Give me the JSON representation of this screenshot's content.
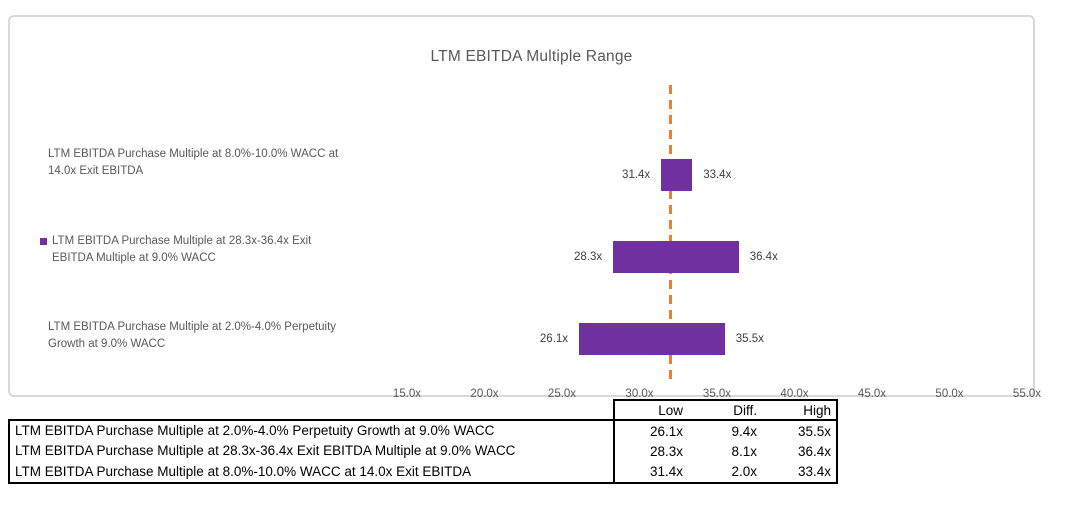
{
  "chart_data": {
    "type": "bar",
    "subtype": "horizontal-range-bar-football-field",
    "title": "LTM EBITDA Multiple Range",
    "bar_color": "#7030A0",
    "legend_marker_color": "#7030A0",
    "rows": [
      {
        "label": "LTM EBITDA Purchase Multiple at 8.0%-10.0% WACC at 14.0x Exit EBITDA",
        "low": 31.4,
        "high": 33.4,
        "diff": 2.0,
        "low_label": "31.4x",
        "high_label": "33.4x"
      },
      {
        "label": "LTM EBITDA Purchase Multiple at 28.3x-36.4x Exit EBITDA Multiple at 9.0% WACC",
        "low": 28.3,
        "high": 36.4,
        "diff": 8.1,
        "low_label": "28.3x",
        "high_label": "36.4x"
      },
      {
        "label": "LTM EBITDA Purchase Multiple at 2.0%-4.0% Perpetuity Growth at 9.0% WACC",
        "low": 26.1,
        "high": 35.5,
        "diff": 9.4,
        "low_label": "26.1x",
        "high_label": "35.5x"
      }
    ],
    "x_axis": {
      "min": 15,
      "max": 55,
      "tick_step": 5,
      "tick_labels": [
        "15.0x",
        "20.0x",
        "25.0x",
        "30.0x",
        "35.0x",
        "40.0x",
        "45.0x",
        "50.0x",
        "55.0x"
      ]
    },
    "reference_line": {
      "value": 32.0,
      "color": "#ED7D31",
      "style": "dashed"
    }
  },
  "table": {
    "header": {
      "low": "Low",
      "diff": "Diff.",
      "high": "High"
    },
    "rows": [
      {
        "label": "LTM EBITDA Purchase Multiple at 2.0%-4.0% Perpetuity Growth at 9.0% WACC",
        "low": "26.1x",
        "diff": "9.4x",
        "high": "35.5x"
      },
      {
        "label": "LTM EBITDA Purchase Multiple at 28.3x-36.4x Exit EBITDA Multiple at 9.0% WACC",
        "low": "28.3x",
        "diff": "8.1x",
        "high": "36.4x"
      },
      {
        "label": "LTM EBITDA Purchase Multiple at 8.0%-10.0% WACC at 14.0x Exit EBITDA",
        "low": "31.4x",
        "diff": "2.0x",
        "high": "33.4x"
      }
    ]
  }
}
